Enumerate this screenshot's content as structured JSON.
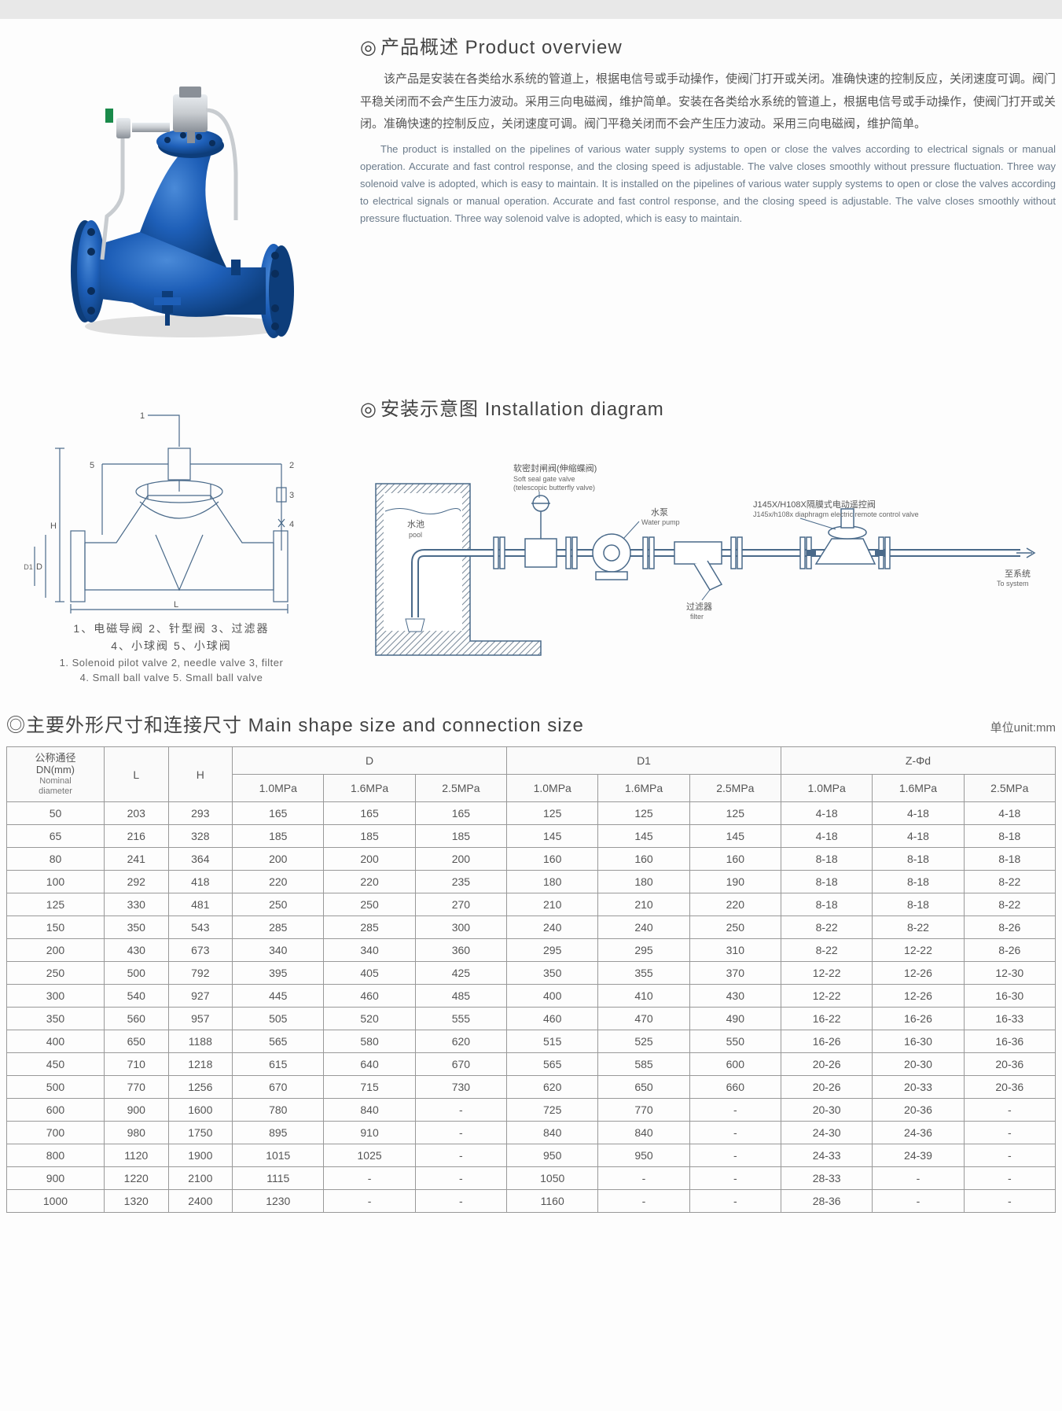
{
  "overview": {
    "heading": "产品概述 Product overview",
    "para_cn": "该产品是安装在各类给水系统的管道上，根据电信号或手动操作，使阀门打开或关闭。准确快速的控制反应，关闭速度可调。阀门平稳关闭而不会产生压力波动。采用三向电磁阀，维护简单。安装在各类给水系统的管道上，根据电信号或手动操作，使阀门打开或关闭。准确快速的控制反应，关闭速度可调。阀门平稳关闭而不会产生压力波动。采用三向电磁阀，维护简单。",
    "para_en": "The product is installed on the pipelines of various water supply systems to open or close the valves according to electrical signals or manual operation. Accurate and fast control response, and the closing speed is adjustable. The valve closes smoothly without pressure fluctuation. Three way solenoid valve is adopted, which is easy to maintain. It is installed on the pipelines of various water supply systems to open or close the valves according to electrical signals or manual operation. Accurate and fast control response, and the closing speed is adjustable. The valve closes smoothly without pressure fluctuation. Three way solenoid valve is adopted, which is easy to maintain."
  },
  "install": {
    "heading": "安装示意图 Installation diagram",
    "labels": {
      "pool_cn": "水池",
      "pool_en": "pool",
      "gate_cn": "软密封闸阀(伸缩蝶阀)",
      "gate_en": "Soft seal gate valve",
      "gate_en2": "(telescopic butterfly valve)",
      "pump_cn": "水泵",
      "pump_en": "Water pump",
      "model_cn": "J145X/H108X隔膜式电动遥控阀",
      "model_en": "J145x/h108x diaphragm electric remote control valve",
      "filter_cn": "过滤器",
      "filter_en": "filter",
      "tosys_cn": "至系统",
      "tosys_en": "To system"
    }
  },
  "schematic": {
    "caption_cn": "1、电磁导阀  2、针型阀  3、过滤器\n4、小球阀  5、小球阀",
    "caption_en_1": "1. Solenoid pilot valve 2, needle valve 3, filter",
    "caption_en_2": "4. Small ball valve 5. Small ball valve",
    "dims": {
      "L": "L",
      "H": "H",
      "D": "D",
      "D1": "D1"
    },
    "callouts": [
      "1",
      "2",
      "3",
      "4",
      "5"
    ]
  },
  "table": {
    "heading": "主要外形尺寸和连接尺寸 Main shape size and connection size",
    "unit": "单位unit:mm",
    "headers": {
      "nominal_cn": "公称通径",
      "nominal_dn": "DN(mm)",
      "nominal_en": "Nominal",
      "nominal_en2": "diameter",
      "L": "L",
      "H": "H",
      "D": "D",
      "D1": "D1",
      "Zphi": "Z-Φd",
      "p1": "1.0MPa",
      "p2": "1.6MPa",
      "p3": "2.5MPa"
    },
    "rows": [
      {
        "dn": "50",
        "L": "203",
        "H": "293",
        "D": [
          "165",
          "165",
          "165"
        ],
        "D1": [
          "125",
          "125",
          "125"
        ],
        "Z": [
          "4-18",
          "4-18",
          "4-18"
        ]
      },
      {
        "dn": "65",
        "L": "216",
        "H": "328",
        "D": [
          "185",
          "185",
          "185"
        ],
        "D1": [
          "145",
          "145",
          "145"
        ],
        "Z": [
          "4-18",
          "4-18",
          "8-18"
        ]
      },
      {
        "dn": "80",
        "L": "241",
        "H": "364",
        "D": [
          "200",
          "200",
          "200"
        ],
        "D1": [
          "160",
          "160",
          "160"
        ],
        "Z": [
          "8-18",
          "8-18",
          "8-18"
        ]
      },
      {
        "dn": "100",
        "L": "292",
        "H": "418",
        "D": [
          "220",
          "220",
          "235"
        ],
        "D1": [
          "180",
          "180",
          "190"
        ],
        "Z": [
          "8-18",
          "8-18",
          "8-22"
        ]
      },
      {
        "dn": "125",
        "L": "330",
        "H": "481",
        "D": [
          "250",
          "250",
          "270"
        ],
        "D1": [
          "210",
          "210",
          "220"
        ],
        "Z": [
          "8-18",
          "8-18",
          "8-22"
        ]
      },
      {
        "dn": "150",
        "L": "350",
        "H": "543",
        "D": [
          "285",
          "285",
          "300"
        ],
        "D1": [
          "240",
          "240",
          "250"
        ],
        "Z": [
          "8-22",
          "8-22",
          "8-26"
        ]
      },
      {
        "dn": "200",
        "L": "430",
        "H": "673",
        "D": [
          "340",
          "340",
          "360"
        ],
        "D1": [
          "295",
          "295",
          "310"
        ],
        "Z": [
          "8-22",
          "12-22",
          "8-26"
        ]
      },
      {
        "dn": "250",
        "L": "500",
        "H": "792",
        "D": [
          "395",
          "405",
          "425"
        ],
        "D1": [
          "350",
          "355",
          "370"
        ],
        "Z": [
          "12-22",
          "12-26",
          "12-30"
        ]
      },
      {
        "dn": "300",
        "L": "540",
        "H": "927",
        "D": [
          "445",
          "460",
          "485"
        ],
        "D1": [
          "400",
          "410",
          "430"
        ],
        "Z": [
          "12-22",
          "12-26",
          "16-30"
        ]
      },
      {
        "dn": "350",
        "L": "560",
        "H": "957",
        "D": [
          "505",
          "520",
          "555"
        ],
        "D1": [
          "460",
          "470",
          "490"
        ],
        "Z": [
          "16-22",
          "16-26",
          "16-33"
        ]
      },
      {
        "dn": "400",
        "L": "650",
        "H": "1188",
        "D": [
          "565",
          "580",
          "620"
        ],
        "D1": [
          "515",
          "525",
          "550"
        ],
        "Z": [
          "16-26",
          "16-30",
          "16-36"
        ]
      },
      {
        "dn": "450",
        "L": "710",
        "H": "1218",
        "D": [
          "615",
          "640",
          "670"
        ],
        "D1": [
          "565",
          "585",
          "600"
        ],
        "Z": [
          "20-26",
          "20-30",
          "20-36"
        ]
      },
      {
        "dn": "500",
        "L": "770",
        "H": "1256",
        "D": [
          "670",
          "715",
          "730"
        ],
        "D1": [
          "620",
          "650",
          "660"
        ],
        "Z": [
          "20-26",
          "20-33",
          "20-36"
        ]
      },
      {
        "dn": "600",
        "L": "900",
        "H": "1600",
        "D": [
          "780",
          "840",
          "-"
        ],
        "D1": [
          "725",
          "770",
          "-"
        ],
        "Z": [
          "20-30",
          "20-36",
          "-"
        ]
      },
      {
        "dn": "700",
        "L": "980",
        "H": "1750",
        "D": [
          "895",
          "910",
          "-"
        ],
        "D1": [
          "840",
          "840",
          "-"
        ],
        "Z": [
          "24-30",
          "24-36",
          "-"
        ]
      },
      {
        "dn": "800",
        "L": "1120",
        "H": "1900",
        "D": [
          "1015",
          "1025",
          "-"
        ],
        "D1": [
          "950",
          "950",
          "-"
        ],
        "Z": [
          "24-33",
          "24-39",
          "-"
        ]
      },
      {
        "dn": "900",
        "L": "1220",
        "H": "2100",
        "D": [
          "1115",
          "-",
          "-"
        ],
        "D1": [
          "1050",
          "-",
          "-"
        ],
        "Z": [
          "28-33",
          "-",
          "-"
        ]
      },
      {
        "dn": "1000",
        "L": "1320",
        "H": "2400",
        "D": [
          "1230",
          "-",
          "-"
        ],
        "D1": [
          "1160",
          "-",
          "-"
        ],
        "Z": [
          "28-36",
          "-",
          "-"
        ]
      }
    ],
    "colors": {
      "border": "#999999",
      "header_bg": "#fafafa",
      "text": "#555555"
    }
  },
  "colors": {
    "valve_body": "#1e5fb8",
    "valve_shadow": "#0d3d7a",
    "valve_highlight": "#4a8ad8",
    "steel": "#c8ccd0",
    "steel_dark": "#8a9098",
    "brass": "#2a4a7a",
    "line": "#4a6a8a",
    "hatch": "#7a8a9a"
  }
}
